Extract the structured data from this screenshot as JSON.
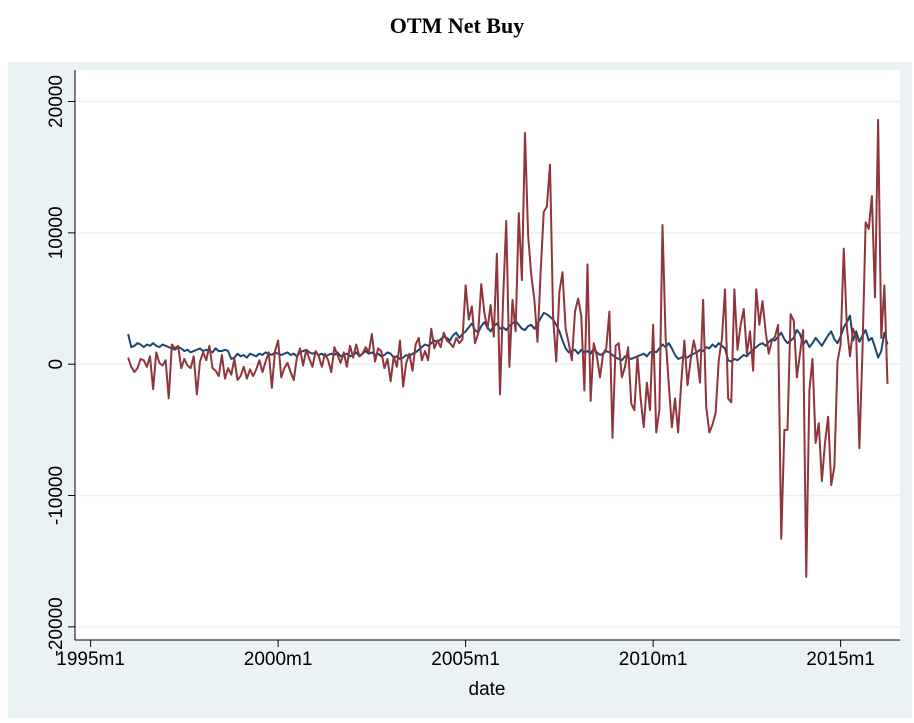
{
  "chart_data": {
    "type": "line",
    "title": "OTM Net Buy",
    "x_label": "date",
    "xlim": [
      415,
      679
    ],
    "xticks": [
      {
        "value": 420,
        "label": "1995m1"
      },
      {
        "value": 480,
        "label": "2000m1"
      },
      {
        "value": 540,
        "label": "2005m1"
      },
      {
        "value": 600,
        "label": "2010m1"
      },
      {
        "value": 660,
        "label": "2015m1"
      }
    ],
    "ylim": [
      -21000,
      22400
    ],
    "yticks": [
      -20000,
      -10000,
      0,
      10000,
      20000
    ],
    "grid": true,
    "x": [
      432,
      433,
      434,
      435,
      436,
      437,
      438,
      439,
      440,
      441,
      442,
      443,
      444,
      445,
      446,
      447,
      448,
      449,
      450,
      451,
      452,
      453,
      454,
      455,
      456,
      457,
      458,
      459,
      460,
      461,
      462,
      463,
      464,
      465,
      466,
      467,
      468,
      469,
      470,
      471,
      472,
      473,
      474,
      475,
      476,
      477,
      478,
      479,
      480,
      481,
      482,
      483,
      484,
      485,
      486,
      487,
      488,
      489,
      490,
      491,
      492,
      493,
      494,
      495,
      496,
      497,
      498,
      499,
      500,
      501,
      502,
      503,
      504,
      505,
      506,
      507,
      508,
      509,
      510,
      511,
      512,
      513,
      514,
      515,
      516,
      517,
      518,
      519,
      520,
      521,
      522,
      523,
      524,
      525,
      526,
      527,
      528,
      529,
      530,
      531,
      532,
      533,
      534,
      535,
      536,
      537,
      538,
      539,
      540,
      541,
      542,
      543,
      544,
      545,
      546,
      547,
      548,
      549,
      550,
      551,
      552,
      553,
      554,
      555,
      556,
      557,
      558,
      559,
      560,
      561,
      562,
      563,
      564,
      565,
      566,
      567,
      568,
      569,
      570,
      571,
      572,
      573,
      574,
      575,
      576,
      577,
      578,
      579,
      580,
      581,
      582,
      583,
      584,
      585,
      586,
      587,
      588,
      589,
      590,
      591,
      592,
      593,
      594,
      595,
      596,
      597,
      598,
      599,
      600,
      601,
      602,
      603,
      604,
      605,
      606,
      607,
      608,
      609,
      610,
      611,
      612,
      613,
      614,
      615,
      616,
      617,
      618,
      619,
      620,
      621,
      622,
      623,
      624,
      625,
      626,
      627,
      628,
      629,
      630,
      631,
      632,
      633,
      634,
      635,
      636,
      637,
      638,
      639,
      640,
      641,
      642,
      643,
      644,
      645,
      646,
      647,
      648,
      649,
      650,
      651,
      652,
      653,
      654,
      655,
      656,
      657,
      658,
      659,
      660,
      661,
      662,
      663,
      664,
      665,
      666,
      667,
      668,
      669,
      670,
      671,
      672,
      673,
      674,
      675
    ],
    "series": [
      {
        "color": "#1a476f",
        "values": [
          2300,
          1300,
          1400,
          1600,
          1500,
          1300,
          1500,
          1400,
          1600,
          1400,
          1300,
          1500,
          1400,
          1300,
          1200,
          1100,
          1300,
          1200,
          1000,
          1100,
          900,
          1000,
          1100,
          1200,
          1000,
          1100,
          1000,
          900,
          1200,
          1000,
          1000,
          1100,
          1000,
          400,
          500,
          800,
          600,
          700,
          500,
          800,
          700,
          600,
          800,
          700,
          900,
          800,
          700,
          900,
          800,
          700,
          800,
          900,
          700,
          800,
          600,
          900,
          1000,
          1100,
          900,
          800,
          900,
          700,
          800,
          600,
          700,
          800,
          700,
          900,
          600,
          700,
          800,
          600,
          700,
          900,
          600,
          800,
          1000,
          800,
          900,
          700,
          800,
          600,
          700,
          900,
          800,
          500,
          600,
          400,
          500,
          700,
          600,
          800,
          900,
          1100,
          1300,
          1500,
          1400,
          1600,
          1800,
          1700,
          1900,
          2100,
          2000,
          1800,
          2200,
          2400,
          2000,
          2300,
          2500,
          2800,
          3100,
          2600,
          2400,
          2900,
          3200,
          2800,
          2500,
          2900,
          3100,
          2700,
          2800,
          2600,
          2900,
          3100,
          3300,
          3000,
          2700,
          2600,
          2900,
          3000,
          2700,
          3100,
          3500,
          3900,
          3800,
          3600,
          3400,
          3000,
          2500,
          1800,
          1200,
          900,
          1000,
          1100,
          800,
          1100,
          900,
          1000,
          800,
          1200,
          900,
          700,
          800,
          1000,
          900,
          700,
          500,
          400,
          300,
          600,
          500,
          400,
          500,
          600,
          700,
          800,
          600,
          900,
          1000,
          900,
          1200,
          1500,
          1300,
          1600,
          1200,
          700,
          400,
          500,
          600,
          500,
          700,
          800,
          900,
          1100,
          1000,
          1300,
          1200,
          1500,
          1300,
          1600,
          1400,
          1200,
          300,
          200,
          400,
          300,
          500,
          700,
          600,
          900,
          1100,
          1300,
          1500,
          1600,
          1400,
          1700,
          1900,
          1800,
          2100,
          2400,
          1900,
          1600,
          1800,
          2000,
          2600,
          2300,
          1500,
          1800,
          1300,
          1600,
          2000,
          1700,
          1400,
          1800,
          2200,
          2500,
          1900,
          1600,
          2100,
          2800,
          3200,
          3700,
          1800,
          2500,
          1700,
          2200,
          2600,
          1800,
          2000,
          1300,
          500,
          1000,
          2400,
          1500
        ]
      },
      {
        "color": "#90353b",
        "values": [
          500,
          -200,
          -600,
          -300,
          400,
          300,
          -200,
          600,
          -1900,
          900,
          100,
          -100,
          300,
          -2600,
          1500,
          1200,
          1400,
          -300,
          400,
          -100,
          -300,
          600,
          -2300,
          200,
          900,
          300,
          1400,
          -300,
          -500,
          -900,
          700,
          -1100,
          -300,
          -800,
          400,
          -1200,
          -900,
          -200,
          -1100,
          -400,
          -900,
          -400,
          300,
          -600,
          200,
          900,
          -1800,
          1000,
          1800,
          -1000,
          -300,
          100,
          -600,
          -1200,
          500,
          1200,
          -100,
          1100,
          400,
          -200,
          1000,
          600,
          -200,
          800,
          300,
          -600,
          1300,
          700,
          100,
          900,
          -200,
          1400,
          500,
          1500,
          600,
          800,
          1300,
          900,
          2300,
          200,
          1200,
          1000,
          -300,
          400,
          -1300,
          600,
          -200,
          1800,
          -1700,
          100,
          800,
          -500,
          1500,
          2000,
          300,
          1000,
          300,
          2700,
          1200,
          1800,
          1300,
          2400,
          1800,
          1600,
          1300,
          2000,
          1600,
          1900,
          6000,
          3400,
          4400,
          1600,
          2300,
          6100,
          3900,
          2700,
          4500,
          2100,
          8400,
          -2300,
          5000,
          10900,
          -200,
          4900,
          2500,
          11500,
          6400,
          17600,
          9800,
          6800,
          4900,
          1700,
          7000,
          11600,
          12000,
          15200,
          3500,
          200,
          5500,
          7000,
          2700,
          1600,
          300,
          4000,
          5000,
          3700,
          -2000,
          7600,
          -2800,
          1600,
          600,
          -1000,
          800,
          1200,
          4000,
          -5600,
          1400,
          1600,
          -1000,
          -200,
          1300,
          -3000,
          -3500,
          600,
          -2600,
          -4800,
          -1400,
          -3500,
          3000,
          -5200,
          -3500,
          10600,
          2000,
          -1500,
          -4800,
          -2600,
          -5200,
          -1400,
          1800,
          -1600,
          300,
          1800,
          700,
          -1400,
          4900,
          -3300,
          -5200,
          -4600,
          -3700,
          300,
          1900,
          5700,
          -2600,
          -2900,
          5700,
          1100,
          3000,
          4200,
          800,
          2500,
          -500,
          5700,
          3000,
          4800,
          2500,
          800,
          1800,
          2100,
          3000,
          -13300,
          -5000,
          -5000,
          3800,
          3300,
          -1000,
          800,
          2600,
          -16200,
          -2000,
          400,
          -6000,
          -4500,
          -8900,
          -6000,
          -4000,
          -9200,
          -7800,
          200,
          1500,
          8800,
          2800,
          600,
          2700,
          2000,
          -6400,
          1100,
          10800,
          10300,
          12800,
          5100,
          18600,
          2000,
          6000,
          -1500
        ]
      }
    ]
  }
}
